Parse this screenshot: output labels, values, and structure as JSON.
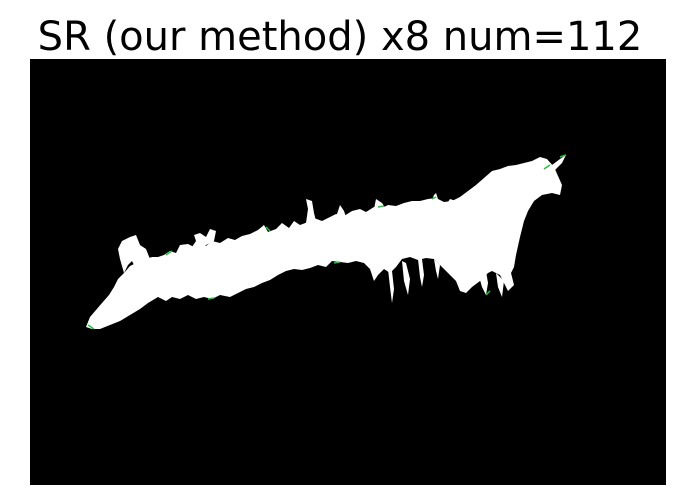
{
  "figure": {
    "title": "SR (our method) x8 num=112"
  },
  "image": {
    "background_color": "#000000",
    "mask_color": "#ffffff",
    "edge_color": "#22c33a"
  }
}
